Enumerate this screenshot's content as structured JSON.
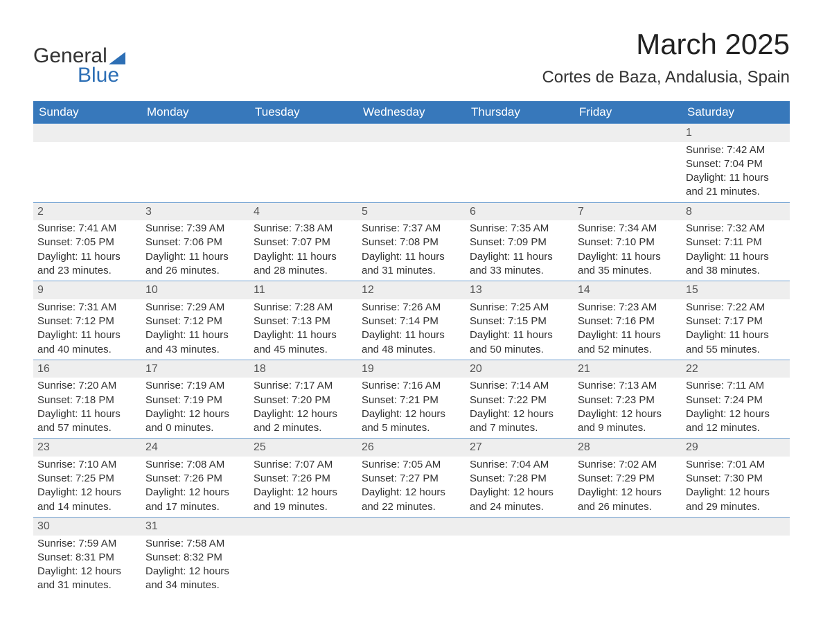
{
  "brand": {
    "word1": "General",
    "word2": "Blue",
    "accent_color": "#2d6fb5"
  },
  "title": {
    "month_year": "March 2025",
    "location": "Cortes de Baza, Andalusia, Spain"
  },
  "header_bg": "#3778bb",
  "header_fg": "#ffffff",
  "row_sep_color": "#6f9fd0",
  "daynum_bg": "#eeeeee",
  "text_color": "#333333",
  "weekdays": [
    "Sunday",
    "Monday",
    "Tuesday",
    "Wednesday",
    "Thursday",
    "Friday",
    "Saturday"
  ],
  "weeks": [
    [
      null,
      null,
      null,
      null,
      null,
      null,
      {
        "n": "1",
        "sunrise": "Sunrise: 7:42 AM",
        "sunset": "Sunset: 7:04 PM",
        "dl1": "Daylight: 11 hours",
        "dl2": "and 21 minutes."
      }
    ],
    [
      {
        "n": "2",
        "sunrise": "Sunrise: 7:41 AM",
        "sunset": "Sunset: 7:05 PM",
        "dl1": "Daylight: 11 hours",
        "dl2": "and 23 minutes."
      },
      {
        "n": "3",
        "sunrise": "Sunrise: 7:39 AM",
        "sunset": "Sunset: 7:06 PM",
        "dl1": "Daylight: 11 hours",
        "dl2": "and 26 minutes."
      },
      {
        "n": "4",
        "sunrise": "Sunrise: 7:38 AM",
        "sunset": "Sunset: 7:07 PM",
        "dl1": "Daylight: 11 hours",
        "dl2": "and 28 minutes."
      },
      {
        "n": "5",
        "sunrise": "Sunrise: 7:37 AM",
        "sunset": "Sunset: 7:08 PM",
        "dl1": "Daylight: 11 hours",
        "dl2": "and 31 minutes."
      },
      {
        "n": "6",
        "sunrise": "Sunrise: 7:35 AM",
        "sunset": "Sunset: 7:09 PM",
        "dl1": "Daylight: 11 hours",
        "dl2": "and 33 minutes."
      },
      {
        "n": "7",
        "sunrise": "Sunrise: 7:34 AM",
        "sunset": "Sunset: 7:10 PM",
        "dl1": "Daylight: 11 hours",
        "dl2": "and 35 minutes."
      },
      {
        "n": "8",
        "sunrise": "Sunrise: 7:32 AM",
        "sunset": "Sunset: 7:11 PM",
        "dl1": "Daylight: 11 hours",
        "dl2": "and 38 minutes."
      }
    ],
    [
      {
        "n": "9",
        "sunrise": "Sunrise: 7:31 AM",
        "sunset": "Sunset: 7:12 PM",
        "dl1": "Daylight: 11 hours",
        "dl2": "and 40 minutes."
      },
      {
        "n": "10",
        "sunrise": "Sunrise: 7:29 AM",
        "sunset": "Sunset: 7:12 PM",
        "dl1": "Daylight: 11 hours",
        "dl2": "and 43 minutes."
      },
      {
        "n": "11",
        "sunrise": "Sunrise: 7:28 AM",
        "sunset": "Sunset: 7:13 PM",
        "dl1": "Daylight: 11 hours",
        "dl2": "and 45 minutes."
      },
      {
        "n": "12",
        "sunrise": "Sunrise: 7:26 AM",
        "sunset": "Sunset: 7:14 PM",
        "dl1": "Daylight: 11 hours",
        "dl2": "and 48 minutes."
      },
      {
        "n": "13",
        "sunrise": "Sunrise: 7:25 AM",
        "sunset": "Sunset: 7:15 PM",
        "dl1": "Daylight: 11 hours",
        "dl2": "and 50 minutes."
      },
      {
        "n": "14",
        "sunrise": "Sunrise: 7:23 AM",
        "sunset": "Sunset: 7:16 PM",
        "dl1": "Daylight: 11 hours",
        "dl2": "and 52 minutes."
      },
      {
        "n": "15",
        "sunrise": "Sunrise: 7:22 AM",
        "sunset": "Sunset: 7:17 PM",
        "dl1": "Daylight: 11 hours",
        "dl2": "and 55 minutes."
      }
    ],
    [
      {
        "n": "16",
        "sunrise": "Sunrise: 7:20 AM",
        "sunset": "Sunset: 7:18 PM",
        "dl1": "Daylight: 11 hours",
        "dl2": "and 57 minutes."
      },
      {
        "n": "17",
        "sunrise": "Sunrise: 7:19 AM",
        "sunset": "Sunset: 7:19 PM",
        "dl1": "Daylight: 12 hours",
        "dl2": "and 0 minutes."
      },
      {
        "n": "18",
        "sunrise": "Sunrise: 7:17 AM",
        "sunset": "Sunset: 7:20 PM",
        "dl1": "Daylight: 12 hours",
        "dl2": "and 2 minutes."
      },
      {
        "n": "19",
        "sunrise": "Sunrise: 7:16 AM",
        "sunset": "Sunset: 7:21 PM",
        "dl1": "Daylight: 12 hours",
        "dl2": "and 5 minutes."
      },
      {
        "n": "20",
        "sunrise": "Sunrise: 7:14 AM",
        "sunset": "Sunset: 7:22 PM",
        "dl1": "Daylight: 12 hours",
        "dl2": "and 7 minutes."
      },
      {
        "n": "21",
        "sunrise": "Sunrise: 7:13 AM",
        "sunset": "Sunset: 7:23 PM",
        "dl1": "Daylight: 12 hours",
        "dl2": "and 9 minutes."
      },
      {
        "n": "22",
        "sunrise": "Sunrise: 7:11 AM",
        "sunset": "Sunset: 7:24 PM",
        "dl1": "Daylight: 12 hours",
        "dl2": "and 12 minutes."
      }
    ],
    [
      {
        "n": "23",
        "sunrise": "Sunrise: 7:10 AM",
        "sunset": "Sunset: 7:25 PM",
        "dl1": "Daylight: 12 hours",
        "dl2": "and 14 minutes."
      },
      {
        "n": "24",
        "sunrise": "Sunrise: 7:08 AM",
        "sunset": "Sunset: 7:26 PM",
        "dl1": "Daylight: 12 hours",
        "dl2": "and 17 minutes."
      },
      {
        "n": "25",
        "sunrise": "Sunrise: 7:07 AM",
        "sunset": "Sunset: 7:26 PM",
        "dl1": "Daylight: 12 hours",
        "dl2": "and 19 minutes."
      },
      {
        "n": "26",
        "sunrise": "Sunrise: 7:05 AM",
        "sunset": "Sunset: 7:27 PM",
        "dl1": "Daylight: 12 hours",
        "dl2": "and 22 minutes."
      },
      {
        "n": "27",
        "sunrise": "Sunrise: 7:04 AM",
        "sunset": "Sunset: 7:28 PM",
        "dl1": "Daylight: 12 hours",
        "dl2": "and 24 minutes."
      },
      {
        "n": "28",
        "sunrise": "Sunrise: 7:02 AM",
        "sunset": "Sunset: 7:29 PM",
        "dl1": "Daylight: 12 hours",
        "dl2": "and 26 minutes."
      },
      {
        "n": "29",
        "sunrise": "Sunrise: 7:01 AM",
        "sunset": "Sunset: 7:30 PM",
        "dl1": "Daylight: 12 hours",
        "dl2": "and 29 minutes."
      }
    ],
    [
      {
        "n": "30",
        "sunrise": "Sunrise: 7:59 AM",
        "sunset": "Sunset: 8:31 PM",
        "dl1": "Daylight: 12 hours",
        "dl2": "and 31 minutes."
      },
      {
        "n": "31",
        "sunrise": "Sunrise: 7:58 AM",
        "sunset": "Sunset: 8:32 PM",
        "dl1": "Daylight: 12 hours",
        "dl2": "and 34 minutes."
      },
      null,
      null,
      null,
      null,
      null
    ]
  ]
}
